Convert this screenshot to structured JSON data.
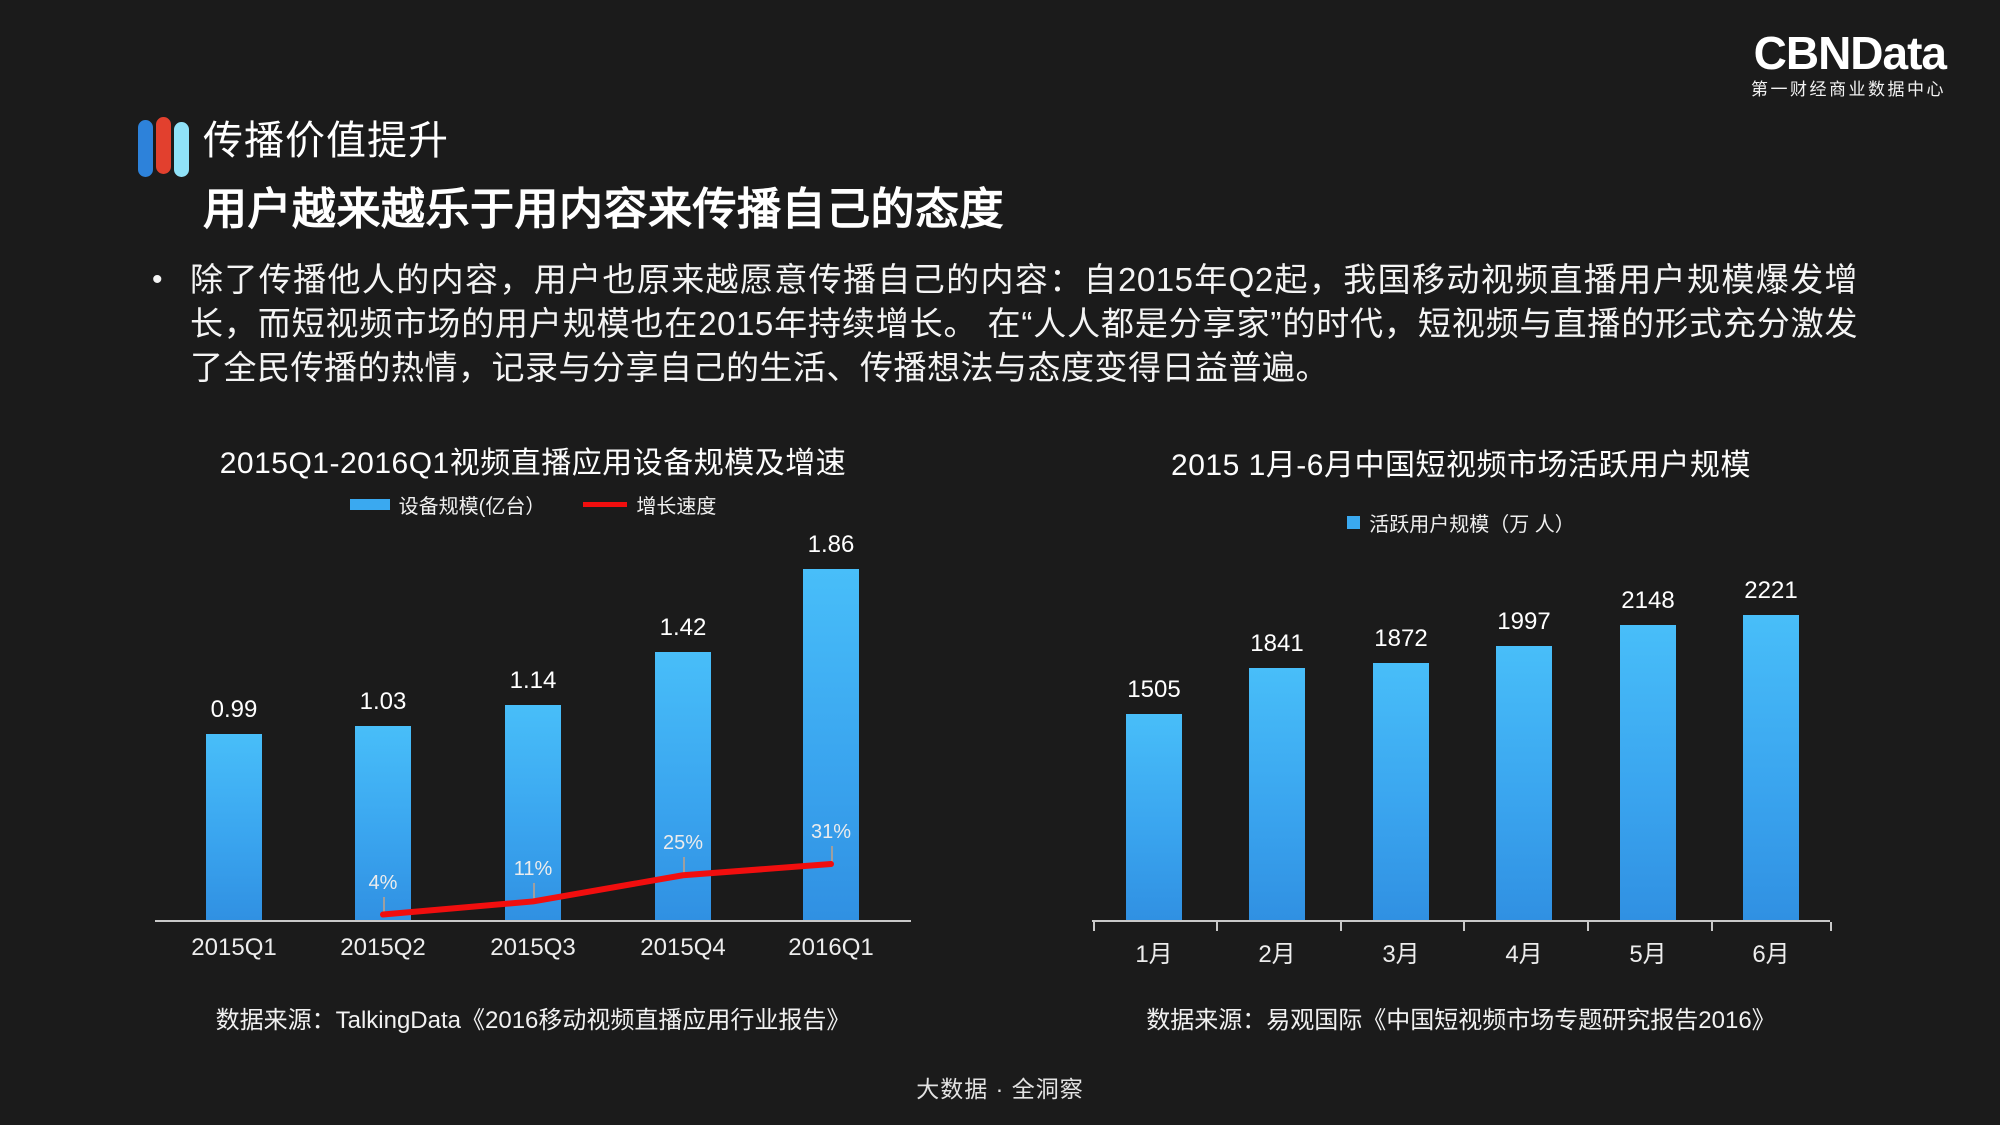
{
  "logo": {
    "brand": "CBNData",
    "subtitle": "第一财经商业数据中心"
  },
  "header": {
    "title_line1": "传播价值提升",
    "title_line2": "用户越来越乐于用内容来传播自己的态度"
  },
  "bullet": {
    "marker": "•",
    "text": "除了传播他人的内容，用户也原来越愿意传播自己的内容：自2015年Q2起，我国移动视频直播用户规模爆发增长，而短视频市场的用户规模也在2015年持续增长。 在“人人都是分享家”的时代，短视频与直播的形式充分激发了全民传播的热情，记录与分享自己的生活、传播想法与态度变得日益普遍。"
  },
  "colors": {
    "background": "#1b1b1b",
    "bar_top": "#48bef9",
    "bar_bottom": "#3090e2",
    "legend_blue": "#3aa9f0",
    "line_red": "#f10e0e",
    "axis_gray": "#c9c9c9",
    "icon_blue": "#2d82da",
    "icon_red": "#e2402e",
    "icon_cyan": "#90e2f8"
  },
  "chart_data": [
    {
      "type": "bar",
      "title": "2015Q1-2016Q1视频直播应用设备规模及增速",
      "categories": [
        "2015Q1",
        "2015Q2",
        "2015Q3",
        "2015Q4",
        "2016Q1"
      ],
      "series": [
        {
          "name": "设备规模(亿台）",
          "type": "bar",
          "values": [
            0.99,
            1.03,
            1.14,
            1.42,
            1.86
          ]
        },
        {
          "name": "增长速度",
          "type": "line",
          "values": [
            null,
            4,
            11,
            25,
            31
          ],
          "unit": "%"
        }
      ],
      "legend": [
        {
          "label": "设备规模(亿台）",
          "swatch": "bar",
          "color": "#3aa9f0"
        },
        {
          "label": "增长速度",
          "swatch": "line",
          "color": "#f10e0e"
        }
      ],
      "ylim": [
        0,
        2.2
      ],
      "grid": false,
      "legend_position": "top",
      "source": "数据来源：TalkingData《2016移动视频直播应用行业报告》"
    },
    {
      "type": "bar",
      "title": "2015 1月-6月中国短视频市场活跃用户规模",
      "categories": [
        "1月",
        "2月",
        "3月",
        "4月",
        "5月",
        "6月"
      ],
      "values": [
        1505,
        1841,
        1872,
        1997,
        2148,
        2221
      ],
      "legend": [
        {
          "label": "活跃用户规模（万 人）",
          "swatch": "square",
          "color": "#3aa9f0"
        }
      ],
      "ylim": [
        0,
        2600
      ],
      "grid": false,
      "legend_position": "top",
      "source": "数据来源：易观国际《中国短视频市场专题研究报告2016》"
    }
  ],
  "footer": {
    "text": "大数据 · 全洞察"
  }
}
